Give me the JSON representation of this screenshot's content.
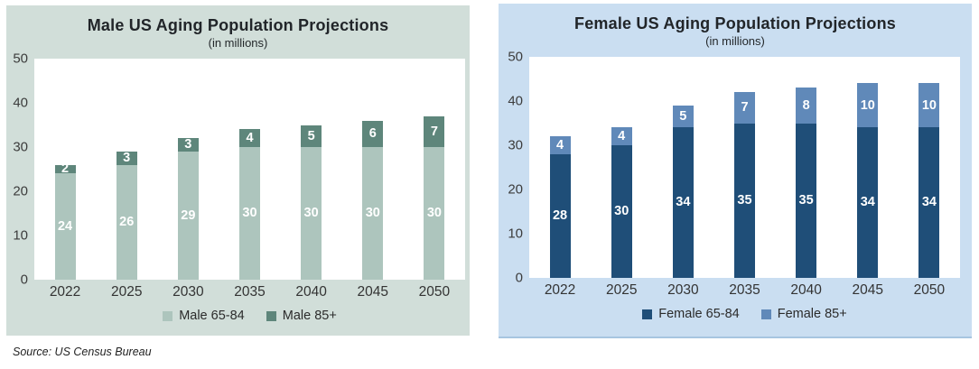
{
  "source_note": "Source: US Census Bureau",
  "chart_data": [
    {
      "type": "bar",
      "stacked": true,
      "title": "Male US Aging Population Projections",
      "subtitle": "(in millions)",
      "categories": [
        "2022",
        "2025",
        "2030",
        "2035",
        "2040",
        "2045",
        "2050"
      ],
      "series": [
        {
          "name": "Male 65-84",
          "color": "#adc5bd",
          "values": [
            24,
            26,
            29,
            30,
            30,
            30,
            30
          ]
        },
        {
          "name": "Male 85+",
          "color": "#5e867b",
          "values": [
            2,
            3,
            3,
            4,
            5,
            6,
            7
          ]
        }
      ],
      "ylim": [
        0,
        50
      ],
      "yticks": [
        0,
        10,
        20,
        30,
        40,
        50
      ],
      "legend_position": "bottom",
      "grid": false,
      "background": "#d1ded9",
      "plot_background": "#ffffff",
      "value_label_color": "#ffffff"
    },
    {
      "type": "bar",
      "stacked": true,
      "title": "Female US Aging Population Projections",
      "subtitle": "(in millions)",
      "categories": [
        "2022",
        "2025",
        "2030",
        "2035",
        "2040",
        "2045",
        "2050"
      ],
      "series": [
        {
          "name": "Female 65-84",
          "color": "#1f4e78",
          "values": [
            28,
            30,
            34,
            35,
            35,
            34,
            34
          ]
        },
        {
          "name": "Female 85+",
          "color": "#6089b9",
          "values": [
            4,
            4,
            5,
            7,
            8,
            10,
            10
          ]
        }
      ],
      "ylim": [
        0,
        50
      ],
      "yticks": [
        0,
        10,
        20,
        30,
        40,
        50
      ],
      "legend_position": "bottom",
      "grid": false,
      "background": "#cadef1",
      "plot_background": "#ffffff",
      "value_label_color": "#ffffff"
    }
  ]
}
